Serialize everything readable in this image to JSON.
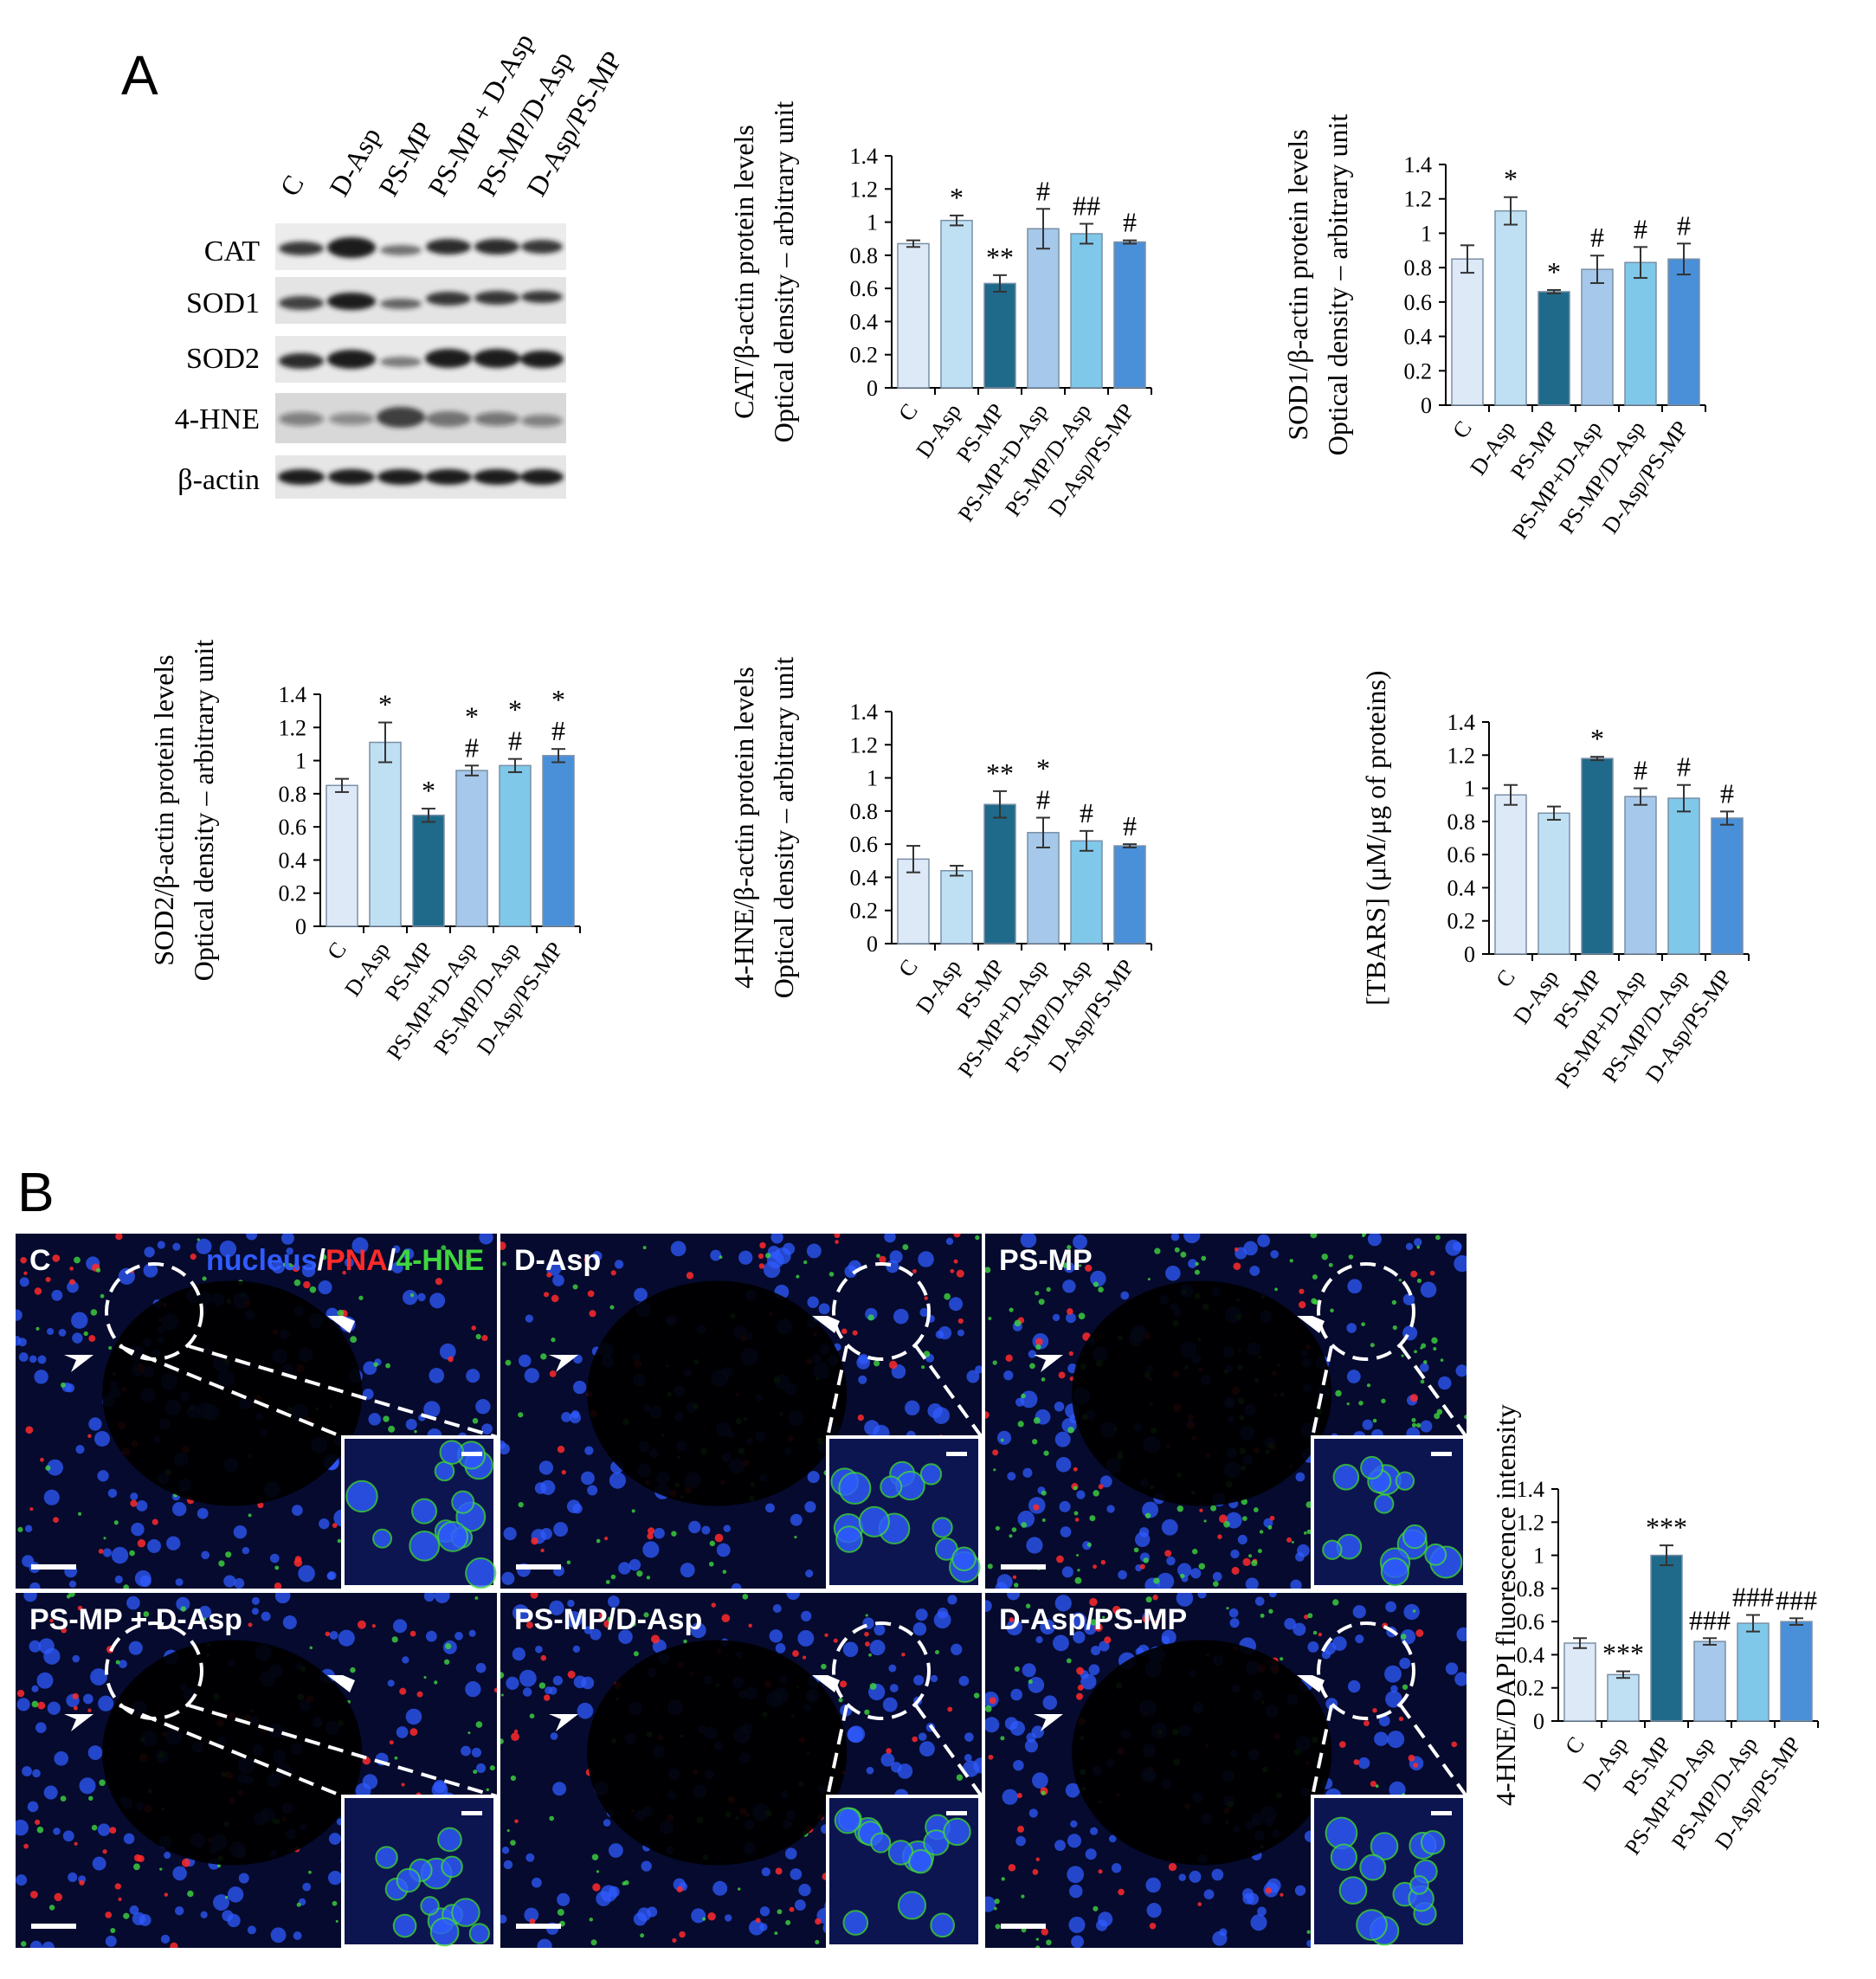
{
  "panels": {
    "a": "A",
    "b": "B"
  },
  "western_blot": {
    "lanes": [
      "C",
      "D-Asp",
      "PS-MP",
      "PS-MP + D-Asp",
      "PS-MP/D-Asp",
      "D-Asp/PS-MP"
    ],
    "proteins": [
      "CAT",
      "SOD1",
      "SOD2",
      "4-HNE",
      "β-actin"
    ]
  },
  "microscopy": {
    "legend": {
      "nucleus": "nucleus",
      "sep1": "/",
      "pna": "PNA",
      "sep2": "/",
      "hne": "4-HNE"
    },
    "panels": [
      "C",
      "D-Asp",
      "PS-MP",
      "PS-MP + D-Asp",
      "PS-MP/D-Asp",
      "D-Asp/PS-MP"
    ],
    "colors": {
      "nucleus": "#2f5bff",
      "pna": "#ff2a2a",
      "hne": "#3fd63f"
    }
  },
  "bar_colors": [
    "#dde9f7",
    "#bfe0f2",
    "#1f6a8a",
    "#a6c8ea",
    "#7fc8ea",
    "#4a90d9"
  ],
  "chart_data": [
    {
      "type": "bar",
      "categories": [
        "C",
        "D-Asp",
        "PS-MP",
        "PS-MP+D-Asp",
        "PS-MP/D-Asp",
        "D-Asp/PS-MP"
      ],
      "values": [
        0.87,
        1.01,
        0.63,
        0.96,
        0.93,
        0.88
      ],
      "errors": [
        0.02,
        0.03,
        0.05,
        0.12,
        0.06,
        0.01
      ],
      "annotations": [
        [
          "",
          ""
        ],
        [
          "*",
          ""
        ],
        [
          "**",
          ""
        ],
        [
          "#",
          ""
        ],
        [
          "##",
          ""
        ],
        [
          "#",
          ""
        ]
      ],
      "ylabel": [
        "CAT/β-actin protein levels",
        "Optical density – arbitrary unit"
      ],
      "ylim": [
        0,
        1.4
      ],
      "yticks": [
        "0",
        "0.2",
        "0.4",
        "0.6",
        "0.8",
        "1",
        "1.2",
        "1.4"
      ]
    },
    {
      "type": "bar",
      "categories": [
        "C",
        "D-Asp",
        "PS-MP",
        "PS-MP+D-Asp",
        "PS-MP/D-Asp",
        "D-Asp/PS-MP"
      ],
      "values": [
        0.85,
        1.13,
        0.66,
        0.79,
        0.83,
        0.85
      ],
      "errors": [
        0.08,
        0.08,
        0.01,
        0.08,
        0.09,
        0.09
      ],
      "annotations": [
        [
          "",
          ""
        ],
        [
          "*",
          ""
        ],
        [
          "*",
          ""
        ],
        [
          "#",
          ""
        ],
        [
          "#",
          ""
        ],
        [
          "#",
          ""
        ]
      ],
      "ylabel": [
        "SOD1/β-actin protein levels",
        "Optical density – arbitrary unit"
      ],
      "ylim": [
        0,
        1.4
      ],
      "yticks": [
        "0",
        "0.2",
        "0.4",
        "0.6",
        "0.8",
        "1",
        "1.2",
        "1.4"
      ]
    },
    {
      "type": "bar",
      "categories": [
        "C",
        "D-Asp",
        "PS-MP",
        "PS-MP+D-Asp",
        "PS-MP/D-Asp",
        "D-Asp/PS-MP"
      ],
      "values": [
        0.85,
        1.11,
        0.67,
        0.94,
        0.97,
        1.03
      ],
      "errors": [
        0.04,
        0.12,
        0.04,
        0.03,
        0.04,
        0.04
      ],
      "annotations": [
        [
          "",
          ""
        ],
        [
          "*",
          ""
        ],
        [
          "*",
          ""
        ],
        [
          "#",
          "*"
        ],
        [
          "#",
          "*"
        ],
        [
          "#",
          "*"
        ]
      ],
      "ylabel": [
        "SOD2/β-actin protein levels",
        "Optical density – arbitrary unit"
      ],
      "ylim": [
        0,
        1.4
      ],
      "yticks": [
        "0",
        "0.2",
        "0.4",
        "0.6",
        "0.8",
        "1",
        "1.2",
        "1.4"
      ]
    },
    {
      "type": "bar",
      "categories": [
        "C",
        "D-Asp",
        "PS-MP",
        "PS-MP+D-Asp",
        "PS-MP/D-Asp",
        "D-Asp/PS-MP"
      ],
      "values": [
        0.51,
        0.44,
        0.84,
        0.67,
        0.62,
        0.59
      ],
      "errors": [
        0.08,
        0.03,
        0.08,
        0.09,
        0.06,
        0.01
      ],
      "annotations": [
        [
          "",
          ""
        ],
        [
          "",
          ""
        ],
        [
          "**",
          ""
        ],
        [
          "#",
          "*"
        ],
        [
          "#",
          ""
        ],
        [
          "#",
          ""
        ]
      ],
      "ylabel": [
        "4-HNE/β-actin protein levels",
        "Optical density – arbitrary unit"
      ],
      "ylim": [
        0,
        1.4
      ],
      "yticks": [
        "0",
        "0.2",
        "0.4",
        "0.6",
        "0.8",
        "1",
        "1.2",
        "1.4"
      ]
    },
    {
      "type": "bar",
      "categories": [
        "C",
        "D-Asp",
        "PS-MP",
        "PS-MP+D-Asp",
        "PS-MP/D-Asp",
        "D-Asp/PS-MP"
      ],
      "values": [
        0.96,
        0.85,
        1.18,
        0.95,
        0.94,
        0.82
      ],
      "errors": [
        0.06,
        0.04,
        0.01,
        0.05,
        0.08,
        0.04
      ],
      "annotations": [
        [
          "",
          ""
        ],
        [
          "",
          ""
        ],
        [
          "*",
          ""
        ],
        [
          "#",
          ""
        ],
        [
          "#",
          ""
        ],
        [
          "#",
          ""
        ]
      ],
      "ylabel": [
        "[TBARS] (μM/μg of proteins)"
      ],
      "ylim": [
        0,
        1.4
      ],
      "yticks": [
        "0",
        "0.2",
        "0.4",
        "0.6",
        "0.8",
        "1",
        "1.2",
        "1.4"
      ]
    },
    {
      "type": "bar",
      "categories": [
        "C",
        "D-Asp",
        "PS-MP",
        "PS-MP+D-Asp",
        "PS-MP/D-Asp",
        "D-Asp/PS-MP"
      ],
      "values": [
        0.47,
        0.28,
        1.0,
        0.48,
        0.59,
        0.6
      ],
      "errors": [
        0.03,
        0.02,
        0.06,
        0.02,
        0.05,
        0.02
      ],
      "annotations": [
        [
          "",
          ""
        ],
        [
          "***",
          ""
        ],
        [
          "***",
          ""
        ],
        [
          "###",
          ""
        ],
        [
          "###",
          ""
        ],
        [
          "###",
          ""
        ]
      ],
      "ylabel": [
        "4-HNE/DAPI fluorescence intensity"
      ],
      "ylim": [
        0,
        1.4
      ],
      "yticks": [
        "0",
        "0.2",
        "0.4",
        "0.6",
        "0.8",
        "1",
        "1.2",
        "1.4"
      ]
    }
  ]
}
